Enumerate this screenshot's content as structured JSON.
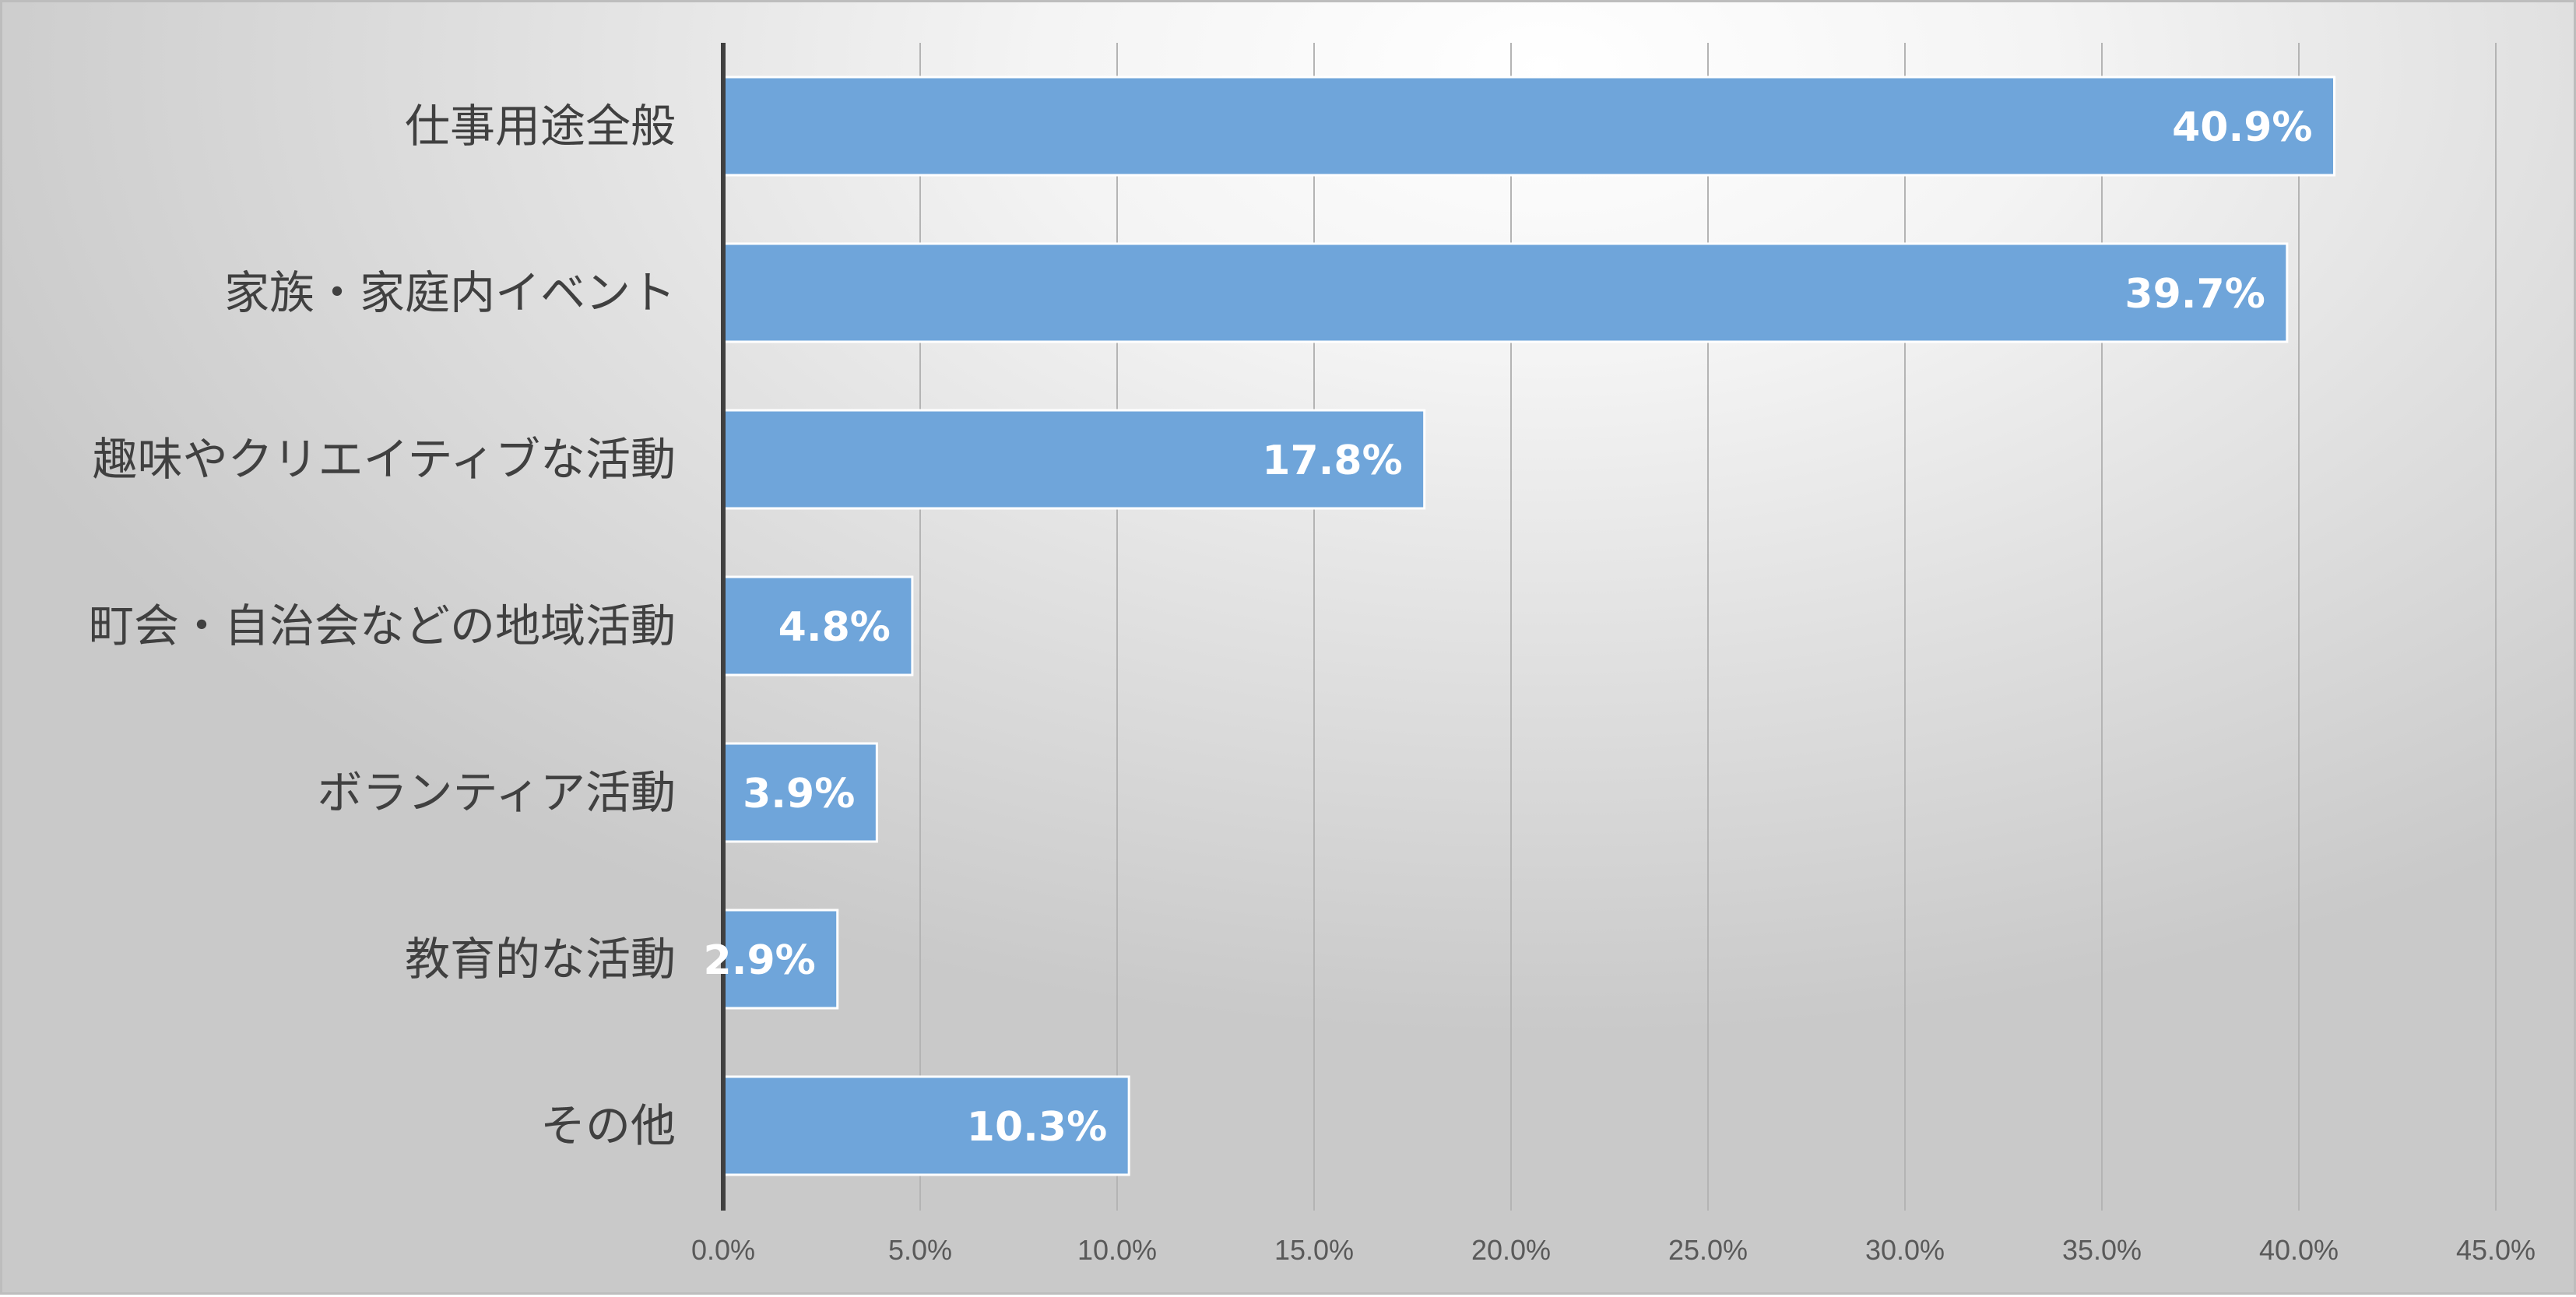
{
  "chart_data": {
    "type": "bar",
    "orientation": "horizontal",
    "title": "",
    "xlabel": "",
    "ylabel": "",
    "categories": [
      "仕事用途全般",
      "家族・家庭内イベント",
      "趣味やクリエイティブな活動",
      "町会・自治会などの地域活動",
      "ボランティア活動",
      "教育的な活動",
      "その他"
    ],
    "values": [
      40.9,
      39.7,
      17.8,
      4.8,
      3.9,
      2.9,
      10.3
    ],
    "data_labels": [
      "40.9%",
      "39.7%",
      "17.8%",
      "4.8%",
      "3.9%",
      "2.9%",
      "10.3%"
    ],
    "x_ticks": [
      "0.0%",
      "5.0%",
      "10.0%",
      "15.0%",
      "20.0%",
      "25.0%",
      "30.0%",
      "35.0%",
      "40.0%",
      "45.0%"
    ],
    "xlim": [
      0,
      45
    ],
    "grid": true,
    "legend": "none",
    "bar_color": "#6FA5DA",
    "label_color": "#FFFFFF"
  }
}
